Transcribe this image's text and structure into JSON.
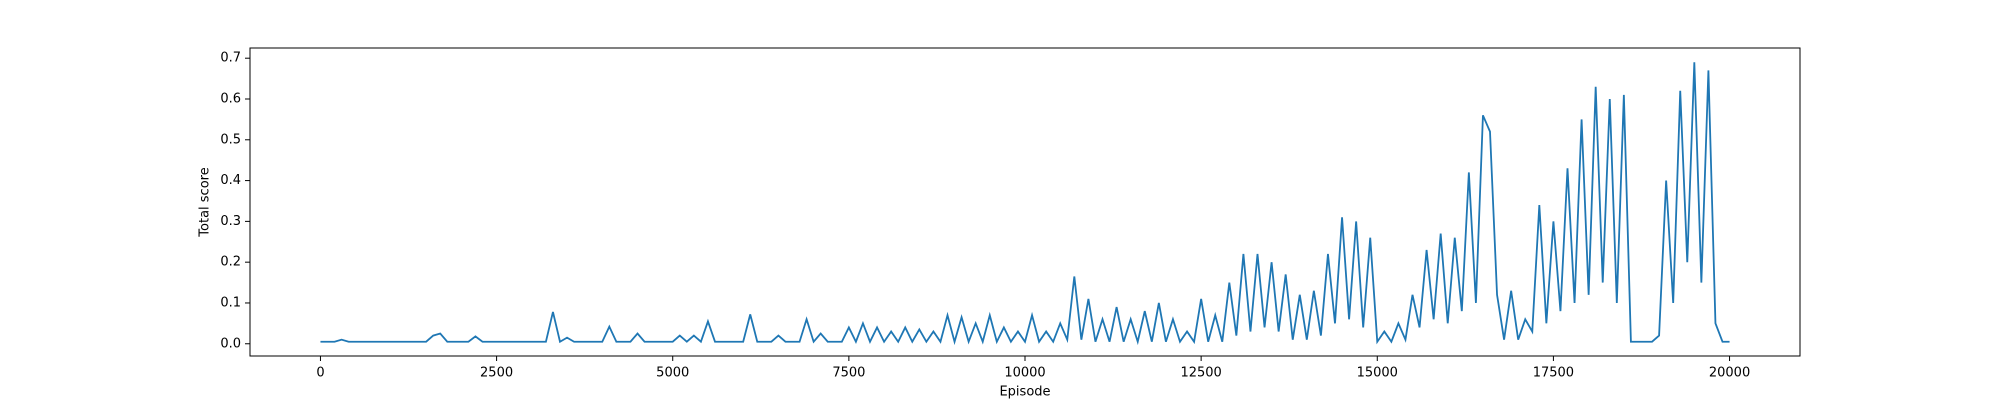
{
  "chart_data": {
    "type": "line",
    "xlabel": "Episode",
    "ylabel": "Total score",
    "x": [
      0,
      100,
      200,
      300,
      400,
      500,
      600,
      700,
      800,
      900,
      1000,
      1100,
      1200,
      1300,
      1400,
      1500,
      1600,
      1700,
      1800,
      1900,
      2000,
      2100,
      2200,
      2300,
      2400,
      2500,
      2600,
      2700,
      2800,
      2900,
      3000,
      3100,
      3200,
      3300,
      3400,
      3500,
      3600,
      3700,
      3800,
      3900,
      4000,
      4100,
      4200,
      4300,
      4400,
      4500,
      4600,
      4700,
      4800,
      4900,
      5000,
      5100,
      5200,
      5300,
      5400,
      5500,
      5600,
      5700,
      5800,
      5900,
      6000,
      6100,
      6200,
      6300,
      6400,
      6500,
      6600,
      6700,
      6800,
      6900,
      7000,
      7100,
      7200,
      7300,
      7400,
      7500,
      7600,
      7700,
      7800,
      7900,
      8000,
      8100,
      8200,
      8300,
      8400,
      8500,
      8600,
      8700,
      8800,
      8900,
      9000,
      9100,
      9200,
      9300,
      9400,
      9500,
      9600,
      9700,
      9800,
      9900,
      10000,
      10100,
      10200,
      10300,
      10400,
      10500,
      10600,
      10700,
      10800,
      10900,
      11000,
      11100,
      11200,
      11300,
      11400,
      11500,
      11600,
      11700,
      11800,
      11900,
      12000,
      12100,
      12200,
      12300,
      12400,
      12500,
      12600,
      12700,
      12800,
      12900,
      13000,
      13100,
      13200,
      13300,
      13400,
      13500,
      13600,
      13700,
      13800,
      13900,
      14000,
      14100,
      14200,
      14300,
      14400,
      14500,
      14600,
      14700,
      14800,
      14900,
      15000,
      15100,
      15200,
      15300,
      15400,
      15500,
      15600,
      15700,
      15800,
      15900,
      16000,
      16100,
      16200,
      16300,
      16400,
      16500,
      16600,
      16700,
      16800,
      16900,
      17000,
      17100,
      17200,
      17300,
      17400,
      17500,
      17600,
      17700,
      17800,
      17900,
      18000,
      18100,
      18200,
      18300,
      18400,
      18500,
      18600,
      18700,
      18800,
      18900,
      19000,
      19100,
      19200,
      19300,
      19400,
      19500,
      19600,
      19700,
      19800,
      19900,
      20000
    ],
    "values": [
      0.005,
      0.005,
      0.005,
      0.01,
      0.005,
      0.005,
      0.005,
      0.005,
      0.005,
      0.005,
      0.005,
      0.005,
      0.005,
      0.005,
      0.005,
      0.005,
      0.02,
      0.025,
      0.005,
      0.005,
      0.005,
      0.005,
      0.018,
      0.005,
      0.005,
      0.005,
      0.005,
      0.005,
      0.005,
      0.005,
      0.005,
      0.005,
      0.005,
      0.078,
      0.005,
      0.015,
      0.005,
      0.005,
      0.005,
      0.005,
      0.005,
      0.042,
      0.005,
      0.005,
      0.005,
      0.025,
      0.005,
      0.005,
      0.005,
      0.005,
      0.005,
      0.02,
      0.005,
      0.02,
      0.005,
      0.055,
      0.005,
      0.005,
      0.005,
      0.005,
      0.005,
      0.072,
      0.005,
      0.005,
      0.005,
      0.02,
      0.005,
      0.005,
      0.005,
      0.06,
      0.005,
      0.025,
      0.005,
      0.005,
      0.005,
      0.04,
      0.005,
      0.05,
      0.005,
      0.04,
      0.005,
      0.03,
      0.005,
      0.04,
      0.005,
      0.035,
      0.005,
      0.03,
      0.005,
      0.07,
      0.005,
      0.065,
      0.005,
      0.05,
      0.005,
      0.07,
      0.005,
      0.04,
      0.005,
      0.03,
      0.005,
      0.07,
      0.005,
      0.03,
      0.005,
      0.05,
      0.01,
      0.165,
      0.01,
      0.11,
      0.005,
      0.06,
      0.005,
      0.09,
      0.005,
      0.06,
      0.005,
      0.08,
      0.005,
      0.1,
      0.005,
      0.06,
      0.005,
      0.03,
      0.005,
      0.11,
      0.005,
      0.07,
      0.005,
      0.15,
      0.02,
      0.22,
      0.03,
      0.22,
      0.04,
      0.2,
      0.03,
      0.17,
      0.01,
      0.12,
      0.01,
      0.13,
      0.02,
      0.22,
      0.05,
      0.31,
      0.06,
      0.3,
      0.04,
      0.26,
      0.005,
      0.03,
      0.005,
      0.05,
      0.01,
      0.12,
      0.04,
      0.23,
      0.06,
      0.27,
      0.05,
      0.26,
      0.08,
      0.42,
      0.1,
      0.56,
      0.52,
      0.12,
      0.01,
      0.13,
      0.01,
      0.06,
      0.03,
      0.34,
      0.05,
      0.3,
      0.08,
      0.43,
      0.1,
      0.55,
      0.12,
      0.63,
      0.15,
      0.6,
      0.1,
      0.61,
      0.005,
      0.005,
      0.005,
      0.005,
      0.02,
      0.4,
      0.1,
      0.62,
      0.2,
      0.69,
      0.15,
      0.67,
      0.05,
      0.005,
      0.005
    ],
    "color": "#1f77b4",
    "xlim": [
      -1000,
      21000
    ],
    "xticks": [
      0,
      2500,
      5000,
      7500,
      10000,
      12500,
      15000,
      17500,
      20000
    ],
    "ylim": [
      -0.03,
      0.725
    ],
    "yticks": [
      {
        "value": 0,
        "label": "0.0"
      },
      0.1,
      0.2,
      0.3,
      0.4,
      0.5,
      0.6,
      0.7
    ]
  }
}
